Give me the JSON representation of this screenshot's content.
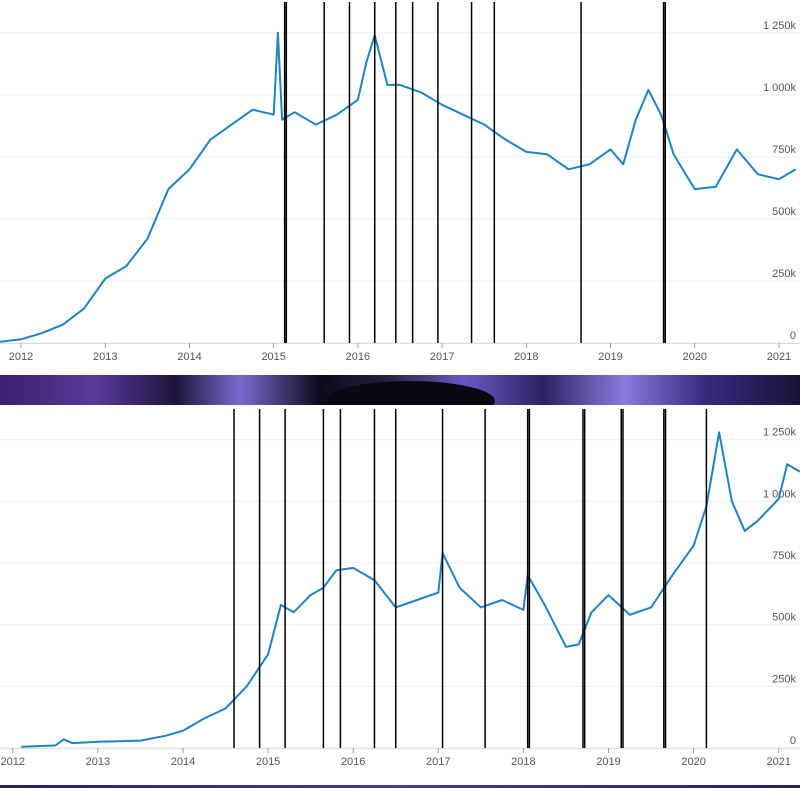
{
  "colors": {
    "line": "#1f84c0",
    "grid": "#eeeeee",
    "axis": "#555555",
    "event": "#000000"
  },
  "chart_data": [
    {
      "type": "line",
      "title": "",
      "xlabel": "",
      "ylabel": "",
      "xlim": [
        2011.75,
        2021.25
      ],
      "ylim": [
        0,
        1350000
      ],
      "grid": true,
      "x_ticks": [
        "2012",
        "2013",
        "2014",
        "2015",
        "2016",
        "2017",
        "2018",
        "2019",
        "2020",
        "2021"
      ],
      "y_ticks": [
        "0",
        "250k",
        "500k",
        "750k",
        "1 000k",
        "1 250k"
      ],
      "series": [
        {
          "x": [
            2011.75,
            2012.0,
            2012.25,
            2012.5,
            2012.75,
            2013.0,
            2013.25,
            2013.5,
            2013.75,
            2014.0,
            2014.25,
            2014.5,
            2014.75,
            2015.0,
            2015.05,
            2015.1,
            2015.25,
            2015.5,
            2015.75,
            2016.0,
            2016.1,
            2016.2,
            2016.35,
            2016.5,
            2016.75,
            2017.0,
            2017.25,
            2017.5,
            2017.75,
            2018.0,
            2018.25,
            2018.5,
            2018.75,
            2019.0,
            2019.15,
            2019.3,
            2019.45,
            2019.6,
            2019.75,
            2020.0,
            2020.25,
            2020.5,
            2020.75,
            2021.0,
            2021.2
          ],
          "y": [
            5000,
            15000,
            40000,
            75000,
            140000,
            260000,
            310000,
            420000,
            620000,
            700000,
            820000,
            880000,
            940000,
            920000,
            1250000,
            900000,
            930000,
            880000,
            920000,
            980000,
            1130000,
            1240000,
            1040000,
            1040000,
            1010000,
            960000,
            920000,
            880000,
            820000,
            770000,
            760000,
            700000,
            720000,
            780000,
            720000,
            900000,
            1020000,
            920000,
            760000,
            620000,
            630000,
            780000,
            680000,
            660000,
            700000
          ]
        }
      ],
      "events": [
        2015.13,
        2015.15,
        2015.6,
        2015.9,
        2016.2,
        2016.45,
        2016.65,
        2016.95,
        2017.35,
        2017.62,
        2018.65,
        2019.63,
        2019.65
      ]
    },
    {
      "type": "line",
      "title": "",
      "xlabel": "",
      "ylabel": "",
      "xlim": [
        2011.85,
        2021.25
      ],
      "ylim": [
        0,
        1350000
      ],
      "grid": true,
      "x_ticks": [
        "2012",
        "2013",
        "2014",
        "2015",
        "2016",
        "2017",
        "2018",
        "2019",
        "2020",
        "2021"
      ],
      "y_ticks": [
        "0",
        "250k",
        "500k",
        "750k",
        "1 000k",
        "1 250k"
      ],
      "series": [
        {
          "x": [
            2012.1,
            2012.5,
            2012.6,
            2012.7,
            2013.0,
            2013.5,
            2013.8,
            2014.0,
            2014.25,
            2014.5,
            2014.75,
            2015.0,
            2015.15,
            2015.3,
            2015.5,
            2015.65,
            2015.8,
            2016.0,
            2016.25,
            2016.5,
            2016.75,
            2017.0,
            2017.05,
            2017.25,
            2017.5,
            2017.75,
            2018.0,
            2018.05,
            2018.25,
            2018.5,
            2018.65,
            2018.8,
            2019.0,
            2019.25,
            2019.5,
            2019.75,
            2020.0,
            2020.15,
            2020.3,
            2020.45,
            2020.6,
            2020.75,
            2021.0,
            2021.1,
            2021.25
          ],
          "y": [
            5000,
            10000,
            35000,
            20000,
            25000,
            30000,
            50000,
            70000,
            120000,
            160000,
            250000,
            380000,
            580000,
            550000,
            620000,
            650000,
            720000,
            730000,
            680000,
            570000,
            600000,
            630000,
            790000,
            650000,
            570000,
            600000,
            560000,
            700000,
            580000,
            410000,
            420000,
            550000,
            620000,
            540000,
            570000,
            700000,
            820000,
            980000,
            1280000,
            1000000,
            880000,
            920000,
            1010000,
            1150000,
            1120000
          ]
        }
      ],
      "events": [
        2014.6,
        2014.9,
        2015.2,
        2015.65,
        2015.85,
        2016.25,
        2016.5,
        2017.05,
        2017.55,
        2018.05,
        2018.07,
        2018.7,
        2018.72,
        2019.15,
        2019.17,
        2019.65,
        2019.67,
        2020.15
      ]
    }
  ]
}
